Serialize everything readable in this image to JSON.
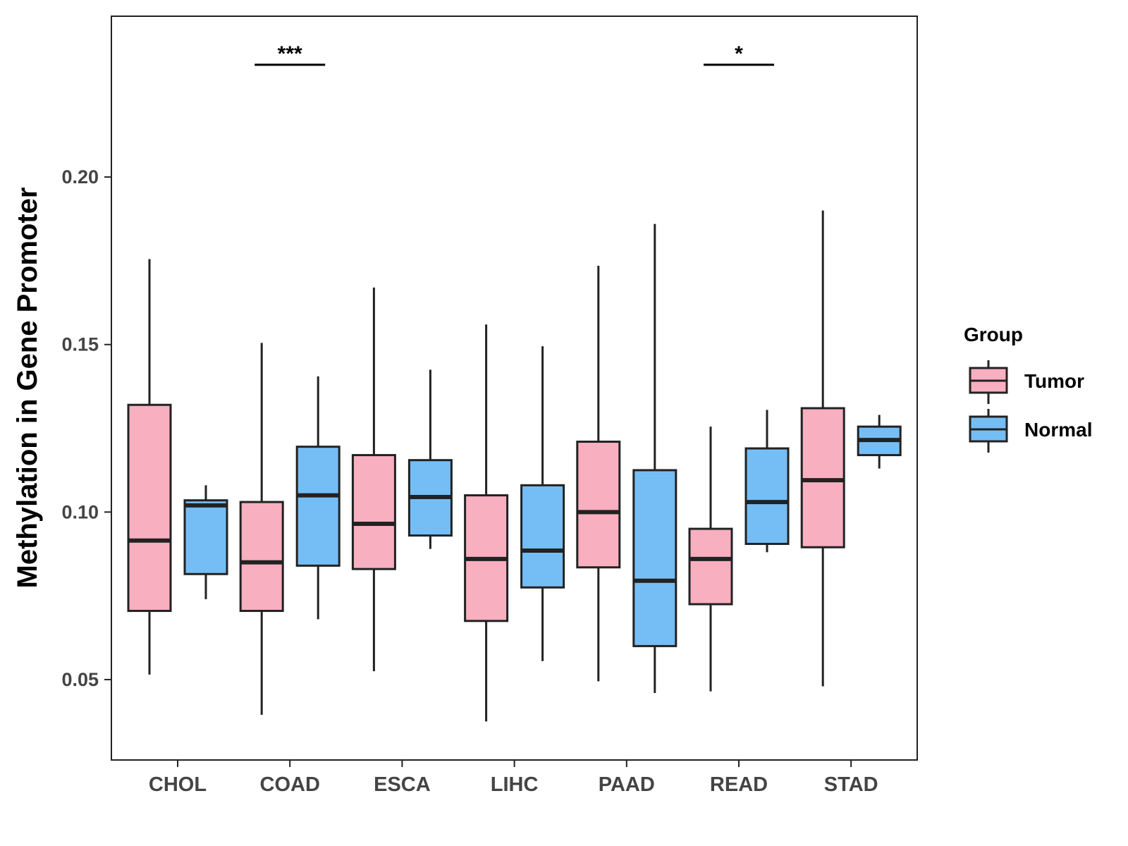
{
  "chart_data": {
    "type": "boxplot",
    "title": "",
    "xlabel": "",
    "ylabel": "Methylation in Gene Promoter",
    "ylim": [
      0.026,
      0.248
    ],
    "yticks": [
      0.05,
      0.1,
      0.15,
      0.2
    ],
    "ytick_labels": [
      "0.05",
      "0.10",
      "0.15",
      "0.20"
    ],
    "categories": [
      "CHOL",
      "COAD",
      "ESCA",
      "LIHC",
      "PAAD",
      "READ",
      "STAD"
    ],
    "legend": {
      "title": "Group",
      "position": "right",
      "entries": [
        "Tumor",
        "Normal"
      ]
    },
    "series": [
      {
        "name": "Tumor",
        "color": "#F8AFC0",
        "boxes": [
          {
            "min": 0.0515,
            "q1": 0.0705,
            "median": 0.0915,
            "q3": 0.132,
            "max": 0.1755
          },
          {
            "min": 0.0395,
            "q1": 0.0705,
            "median": 0.085,
            "q3": 0.103,
            "max": 0.1505
          },
          {
            "min": 0.0525,
            "q1": 0.083,
            "median": 0.0965,
            "q3": 0.117,
            "max": 0.167
          },
          {
            "min": 0.0375,
            "q1": 0.0675,
            "median": 0.086,
            "q3": 0.105,
            "max": 0.156
          },
          {
            "min": 0.0495,
            "q1": 0.0835,
            "median": 0.1,
            "q3": 0.121,
            "max": 0.1735
          },
          {
            "min": 0.0465,
            "q1": 0.0725,
            "median": 0.086,
            "q3": 0.095,
            "max": 0.1255
          },
          {
            "min": 0.048,
            "q1": 0.0895,
            "median": 0.1095,
            "q3": 0.131,
            "max": 0.19
          }
        ]
      },
      {
        "name": "Normal",
        "color": "#75BEF5",
        "boxes": [
          {
            "min": 0.074,
            "q1": 0.0815,
            "median": 0.102,
            "q3": 0.1035,
            "max": 0.108
          },
          {
            "min": 0.068,
            "q1": 0.084,
            "median": 0.105,
            "q3": 0.1195,
            "max": 0.1405
          },
          {
            "min": 0.089,
            "q1": 0.093,
            "median": 0.1045,
            "q3": 0.1155,
            "max": 0.1425
          },
          {
            "min": 0.0555,
            "q1": 0.0775,
            "median": 0.0885,
            "q3": 0.108,
            "max": 0.1495
          },
          {
            "min": 0.046,
            "q1": 0.06,
            "median": 0.0795,
            "q3": 0.1125,
            "max": 0.186
          },
          {
            "min": 0.088,
            "q1": 0.0905,
            "median": 0.103,
            "q3": 0.119,
            "max": 0.1305
          },
          {
            "min": 0.113,
            "q1": 0.117,
            "median": 0.1215,
            "q3": 0.1255,
            "max": 0.129
          }
        ]
      }
    ],
    "annotations": [
      {
        "category": "COAD",
        "label": "***",
        "y": 0.2335
      },
      {
        "category": "READ",
        "label": "*",
        "y": 0.2335
      }
    ]
  }
}
